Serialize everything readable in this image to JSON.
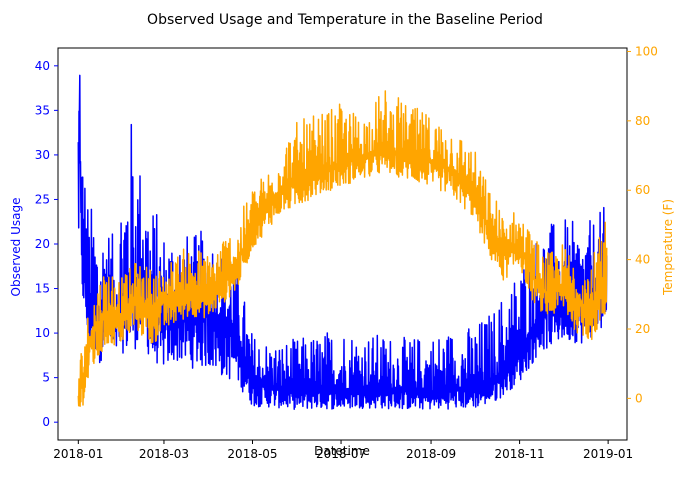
{
  "chart_data": {
    "type": "line",
    "title": "Observed Usage and Temperature in the Baseline Period",
    "xlabel": "Datetime",
    "xlim": [
      "2017-12-18",
      "2019-01-14"
    ],
    "x_ticks": [
      "2018-01",
      "2018-03",
      "2018-05",
      "2018-07",
      "2018-09",
      "2018-11",
      "2019-01"
    ],
    "left_axis": {
      "label": "Observed Usage",
      "color": "#0000ff",
      "ylim": [
        -2,
        42
      ],
      "ticks": [
        0,
        5,
        10,
        15,
        20,
        25,
        30,
        35,
        40
      ]
    },
    "right_axis": {
      "label": "Temperature (F)",
      "color": "#ffa500",
      "ylim": [
        -12,
        101
      ],
      "ticks": [
        0,
        20,
        40,
        60,
        80,
        100
      ]
    },
    "series": [
      {
        "axis": "left",
        "color": "#0000ff",
        "x": [
          "2018-01-01",
          "2018-01-02",
          "2018-01-03",
          "2018-01-05",
          "2018-01-08",
          "2018-01-12",
          "2018-01-16",
          "2018-01-20",
          "2018-01-25",
          "2018-02-01",
          "2018-02-07",
          "2018-02-14",
          "2018-02-21",
          "2018-03-01",
          "2018-03-10",
          "2018-03-20",
          "2018-04-01",
          "2018-04-10",
          "2018-04-20",
          "2018-05-01",
          "2018-05-15",
          "2018-06-01",
          "2018-06-15",
          "2018-07-01",
          "2018-07-15",
          "2018-08-01",
          "2018-08-15",
          "2018-09-01",
          "2018-09-15",
          "2018-10-01",
          "2018-10-15",
          "2018-11-01",
          "2018-11-15",
          "2018-12-01",
          "2018-12-15",
          "2018-12-31"
        ],
        "values": [
          25.0,
          38.0,
          20.0,
          18.0,
          12.0,
          14.0,
          10.0,
          15.0,
          11.0,
          13.0,
          15.0,
          17.0,
          12.0,
          11.0,
          13.0,
          12.0,
          13.0,
          11.0,
          10.0,
          4.5,
          4.0,
          3.5,
          3.8,
          3.6,
          4.0,
          3.8,
          3.6,
          3.5,
          3.8,
          4.0,
          5.0,
          8.0,
          12.0,
          14.0,
          13.0,
          15.0
        ],
        "band_min": [
          15.0,
          15.0,
          12.0,
          10.0,
          7.0,
          6.0,
          5.0,
          6.0,
          6.0,
          5.5,
          5.0,
          5.0,
          4.5,
          4.0,
          4.0,
          3.5,
          3.0,
          2.5,
          2.0,
          0.6,
          0.6,
          0.5,
          0.5,
          0.5,
          0.5,
          0.5,
          0.5,
          0.5,
          0.5,
          0.5,
          1.0,
          3.0,
          6.0,
          7.0,
          7.0,
          9.0
        ],
        "band_max": [
          40.0,
          40.0,
          35.0,
          30.0,
          25.0,
          24.0,
          22.0,
          23.0,
          21.0,
          30.0,
          35.0,
          28.0,
          25.0,
          22.0,
          22.0,
          21.0,
          22.0,
          20.0,
          18.0,
          10.0,
          9.0,
          9.5,
          10.0,
          11.0,
          10.0,
          10.0,
          9.5,
          10.0,
          10.5,
          11.0,
          13.0,
          18.0,
          22.0,
          23.0,
          22.0,
          24.5
        ]
      },
      {
        "axis": "right",
        "color": "#ffa500",
        "x": [
          "2018-01-01",
          "2018-01-05",
          "2018-01-10",
          "2018-01-20",
          "2018-02-01",
          "2018-02-10",
          "2018-02-20",
          "2018-03-01",
          "2018-03-10",
          "2018-03-20",
          "2018-04-01",
          "2018-04-10",
          "2018-04-20",
          "2018-05-01",
          "2018-05-10",
          "2018-05-20",
          "2018-06-01",
          "2018-06-15",
          "2018-07-01",
          "2018-07-15",
          "2018-08-01",
          "2018-08-15",
          "2018-09-01",
          "2018-09-15",
          "2018-10-01",
          "2018-10-10",
          "2018-10-20",
          "2018-11-01",
          "2018-11-10",
          "2018-11-20",
          "2018-12-01",
          "2018-12-10",
          "2018-12-20",
          "2018-12-31"
        ],
        "values": [
          0,
          8,
          18,
          25,
          24,
          30,
          25,
          28,
          30,
          32,
          30,
          34,
          38,
          50,
          55,
          60,
          63,
          65,
          68,
          70,
          72,
          70,
          68,
          66,
          60,
          50,
          42,
          45,
          35,
          30,
          33,
          28,
          26,
          32
        ],
        "band_min": [
          -8,
          -5,
          2,
          10,
          12,
          15,
          10,
          15,
          18,
          20,
          20,
          24,
          28,
          40,
          45,
          50,
          52,
          56,
          58,
          60,
          62,
          60,
          58,
          55,
          48,
          38,
          30,
          35,
          25,
          20,
          22,
          15,
          12,
          20
        ],
        "band_max": [
          10,
          20,
          30,
          40,
          35,
          40,
          38,
          38,
          42,
          45,
          42,
          48,
          50,
          62,
          65,
          75,
          80,
          82,
          85,
          82,
          90,
          85,
          82,
          80,
          72,
          62,
          55,
          54,
          48,
          42,
          45,
          42,
          40,
          52
        ]
      }
    ],
    "legend": "none",
    "grid": false
  }
}
